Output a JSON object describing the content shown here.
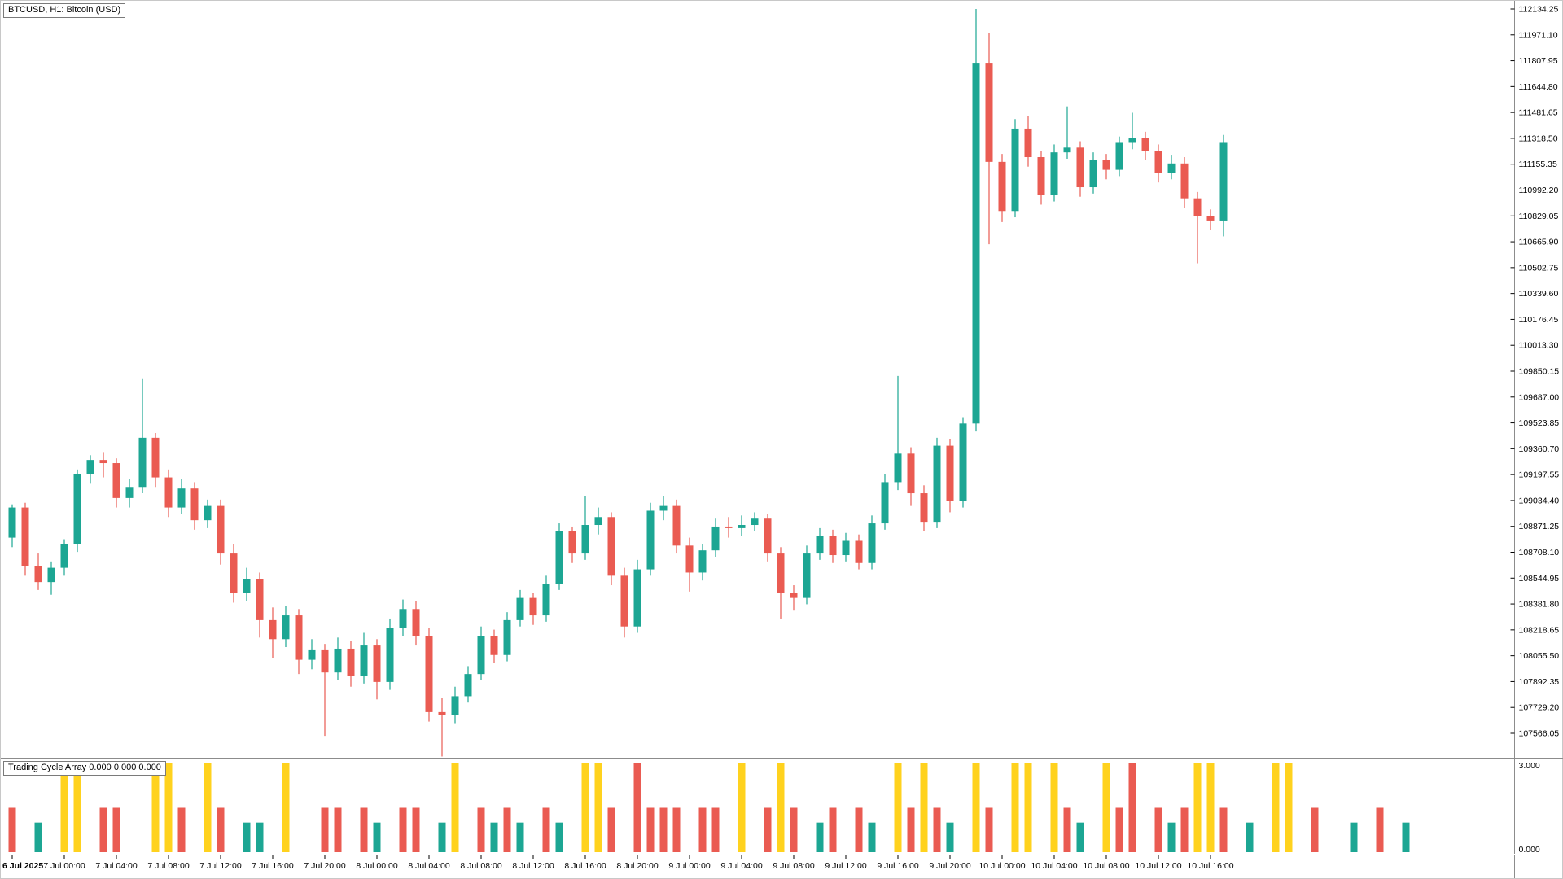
{
  "window": {
    "symbol_title": "BTCUSD, H1:  Bitcoin (USD)"
  },
  "chart_data": {
    "type": "candlestick",
    "symbol": "BTCUSD",
    "timeframe": "H1",
    "title": "BTCUSD, H1:  Bitcoin (USD)",
    "price_axis": {
      "max": 112134.25,
      "min": 107566.05,
      "tick_step": 163.15,
      "labels": [
        "112134.25",
        "111971.10",
        "111807.95",
        "111644.80",
        "111481.65",
        "111318.50",
        "111155.35",
        "110992.20",
        "110829.05",
        "110665.90",
        "110502.75",
        "110339.60",
        "110176.45",
        "110013.30",
        "109850.15",
        "109687.00",
        "109523.85",
        "109360.70",
        "109197.55",
        "109034.40",
        "108871.25",
        "108708.10",
        "108544.95",
        "108381.80",
        "108218.65",
        "108055.50",
        "107892.35",
        "107729.20",
        "107566.05"
      ]
    },
    "time_labels": [
      {
        "i": 0,
        "t": "6 Jul 2025"
      },
      {
        "i": 4,
        "t": "7 Jul 00:00"
      },
      {
        "i": 8,
        "t": "7 Jul 04:00"
      },
      {
        "i": 12,
        "t": "7 Jul 08:00"
      },
      {
        "i": 16,
        "t": "7 Jul 12:00"
      },
      {
        "i": 20,
        "t": "7 Jul 16:00"
      },
      {
        "i": 24,
        "t": "7 Jul 20:00"
      },
      {
        "i": 28,
        "t": "8 Jul 00:00"
      },
      {
        "i": 32,
        "t": "8 Jul 04:00"
      },
      {
        "i": 36,
        "t": "8 Jul 08:00"
      },
      {
        "i": 40,
        "t": "8 Jul 12:00"
      },
      {
        "i": 44,
        "t": "8 Jul 16:00"
      },
      {
        "i": 48,
        "t": "8 Jul 20:00"
      },
      {
        "i": 52,
        "t": "9 Jul 00:00"
      },
      {
        "i": 56,
        "t": "9 Jul 04:00"
      },
      {
        "i": 60,
        "t": "9 Jul 08:00"
      },
      {
        "i": 64,
        "t": "9 Jul 12:00"
      },
      {
        "i": 68,
        "t": "9 Jul 16:00"
      },
      {
        "i": 72,
        "t": "9 Jul 20:00"
      },
      {
        "i": 76,
        "t": "10 Jul 00:00"
      },
      {
        "i": 80,
        "t": "10 Jul 04:00"
      },
      {
        "i": 84,
        "t": "10 Jul 08:00"
      },
      {
        "i": 88,
        "t": "10 Jul 12:00"
      },
      {
        "i": 92,
        "t": "10 Jul 16:00"
      }
    ],
    "candles": [
      [
        108800,
        109010,
        108740,
        108990
      ],
      [
        108990,
        109020,
        108560,
        108620
      ],
      [
        108620,
        108700,
        108470,
        108520
      ],
      [
        108520,
        108650,
        108440,
        108610
      ],
      [
        108610,
        108790,
        108560,
        108760
      ],
      [
        108760,
        109230,
        108710,
        109200
      ],
      [
        109200,
        109320,
        109140,
        109290
      ],
      [
        109290,
        109340,
        109180,
        109270
      ],
      [
        109270,
        109300,
        108990,
        109050
      ],
      [
        109050,
        109170,
        108990,
        109120
      ],
      [
        109120,
        109800,
        109080,
        109430
      ],
      [
        109430,
        109460,
        109120,
        109180
      ],
      [
        109180,
        109230,
        108930,
        108990
      ],
      [
        108990,
        109170,
        108950,
        109110
      ],
      [
        109110,
        109150,
        108850,
        108910
      ],
      [
        108910,
        109040,
        108860,
        109000
      ],
      [
        109000,
        109040,
        108630,
        108700
      ],
      [
        108700,
        108760,
        108390,
        108450
      ],
      [
        108450,
        108610,
        108400,
        108540
      ],
      [
        108540,
        108580,
        108170,
        108280
      ],
      [
        108280,
        108360,
        108040,
        108160
      ],
      [
        108160,
        108370,
        108110,
        108310
      ],
      [
        108310,
        108350,
        107940,
        108030
      ],
      [
        108030,
        108160,
        107970,
        108090
      ],
      [
        108090,
        108130,
        107550,
        107950
      ],
      [
        107950,
        108170,
        107900,
        108100
      ],
      [
        108100,
        108150,
        107860,
        107930
      ],
      [
        107930,
        108200,
        107880,
        108120
      ],
      [
        108120,
        108160,
        107780,
        107890
      ],
      [
        107890,
        108290,
        107840,
        108230
      ],
      [
        108230,
        108410,
        108180,
        108350
      ],
      [
        108350,
        108400,
        108120,
        108180
      ],
      [
        108180,
        108230,
        107640,
        107700
      ],
      [
        107700,
        107790,
        107420,
        107680
      ],
      [
        107680,
        107860,
        107630,
        107800
      ],
      [
        107800,
        107990,
        107760,
        107940
      ],
      [
        107940,
        108240,
        107900,
        108180
      ],
      [
        108180,
        108220,
        108010,
        108060
      ],
      [
        108060,
        108330,
        108020,
        108280
      ],
      [
        108280,
        108470,
        108240,
        108420
      ],
      [
        108420,
        108450,
        108250,
        108310
      ],
      [
        108310,
        108560,
        108270,
        108510
      ],
      [
        108510,
        108890,
        108470,
        108840
      ],
      [
        108840,
        108870,
        108640,
        108700
      ],
      [
        108700,
        109060,
        108660,
        108880
      ],
      [
        108880,
        108990,
        108820,
        108930
      ],
      [
        108930,
        108960,
        108500,
        108560
      ],
      [
        108560,
        108610,
        108170,
        108240
      ],
      [
        108240,
        108660,
        108200,
        108600
      ],
      [
        108600,
        109020,
        108560,
        108970
      ],
      [
        108970,
        109060,
        108910,
        109000
      ],
      [
        109000,
        109040,
        108700,
        108750
      ],
      [
        108750,
        108800,
        108460,
        108580
      ],
      [
        108580,
        108760,
        108530,
        108720
      ],
      [
        108720,
        108920,
        108680,
        108870
      ],
      [
        108870,
        108930,
        108800,
        108860
      ],
      [
        108860,
        108940,
        108810,
        108880
      ],
      [
        108880,
        108960,
        108840,
        108920
      ],
      [
        108920,
        108950,
        108650,
        108700
      ],
      [
        108700,
        108740,
        108290,
        108450
      ],
      [
        108450,
        108500,
        108340,
        108420
      ],
      [
        108420,
        108750,
        108380,
        108700
      ],
      [
        108700,
        108860,
        108660,
        108810
      ],
      [
        108810,
        108850,
        108640,
        108690
      ],
      [
        108690,
        108830,
        108650,
        108780
      ],
      [
        108780,
        108820,
        108600,
        108640
      ],
      [
        108640,
        108940,
        108600,
        108890
      ],
      [
        108890,
        109200,
        108850,
        109150
      ],
      [
        109150,
        109820,
        109100,
        109330
      ],
      [
        109330,
        109370,
        109000,
        109080
      ],
      [
        109080,
        109130,
        108840,
        108900
      ],
      [
        108900,
        109430,
        108860,
        109380
      ],
      [
        109380,
        109420,
        108960,
        109030
      ],
      [
        109030,
        109560,
        108990,
        109520
      ],
      [
        109520,
        112134,
        109470,
        111790
      ],
      [
        111790,
        111980,
        110650,
        111170
      ],
      [
        111170,
        111220,
        110790,
        110860
      ],
      [
        110860,
        111440,
        110820,
        111380
      ],
      [
        111380,
        111460,
        111140,
        111200
      ],
      [
        111200,
        111240,
        110900,
        110960
      ],
      [
        110960,
        111280,
        110920,
        111230
      ],
      [
        111230,
        111520,
        111190,
        111260
      ],
      [
        111260,
        111300,
        110950,
        111010
      ],
      [
        111010,
        111230,
        110970,
        111180
      ],
      [
        111180,
        111220,
        111060,
        111120
      ],
      [
        111120,
        111330,
        111080,
        111290
      ],
      [
        111290,
        111480,
        111250,
        111320
      ],
      [
        111320,
        111360,
        111180,
        111240
      ],
      [
        111240,
        111280,
        111040,
        111100
      ],
      [
        111100,
        111210,
        111060,
        111160
      ],
      [
        111160,
        111200,
        110880,
        110940
      ],
      [
        110940,
        110980,
        110530,
        110830
      ],
      [
        110830,
        110870,
        110740,
        110800
      ],
      [
        110800,
        111340,
        110700,
        111290
      ]
    ],
    "indicator": {
      "name": "Trading Cycle Array",
      "values_label": "Trading Cycle Array 0.000 0.000 0.000",
      "scale": {
        "min": 0,
        "max": 3,
        "top_label": "3.000",
        "bottom_label": "0.000"
      },
      "bars": [
        [
          0,
          "r",
          1.5
        ],
        [
          2,
          "t",
          1
        ],
        [
          4,
          "y",
          3
        ],
        [
          5,
          "y",
          3
        ],
        [
          7,
          "r",
          1.5
        ],
        [
          8,
          "r",
          1.5
        ],
        [
          11,
          "y",
          3
        ],
        [
          12,
          "y",
          3
        ],
        [
          13,
          "r",
          1.5
        ],
        [
          15,
          "y",
          3
        ],
        [
          16,
          "r",
          1.5
        ],
        [
          18,
          "t",
          1
        ],
        [
          19,
          "t",
          1
        ],
        [
          21,
          "y",
          3
        ],
        [
          24,
          "r",
          1.5
        ],
        [
          25,
          "r",
          1.5
        ],
        [
          27,
          "r",
          1.5
        ],
        [
          28,
          "t",
          1
        ],
        [
          30,
          "r",
          1.5
        ],
        [
          31,
          "r",
          1.5
        ],
        [
          33,
          "t",
          1
        ],
        [
          34,
          "y",
          3
        ],
        [
          36,
          "r",
          1.5
        ],
        [
          37,
          "t",
          1
        ],
        [
          38,
          "r",
          1.5
        ],
        [
          39,
          "t",
          1
        ],
        [
          41,
          "r",
          1.5
        ],
        [
          42,
          "t",
          1
        ],
        [
          44,
          "y",
          3
        ],
        [
          45,
          "y",
          3
        ],
        [
          46,
          "r",
          1.5
        ],
        [
          48,
          "r",
          3
        ],
        [
          49,
          "r",
          1.5
        ],
        [
          50,
          "r",
          1.5
        ],
        [
          51,
          "r",
          1.5
        ],
        [
          53,
          "r",
          1.5
        ],
        [
          54,
          "r",
          1.5
        ],
        [
          56,
          "y",
          3
        ],
        [
          58,
          "r",
          1.5
        ],
        [
          59,
          "y",
          3
        ],
        [
          60,
          "r",
          1.5
        ],
        [
          62,
          "t",
          1
        ],
        [
          63,
          "r",
          1.5
        ],
        [
          65,
          "r",
          1.5
        ],
        [
          66,
          "t",
          1
        ],
        [
          68,
          "y",
          3
        ],
        [
          69,
          "r",
          1.5
        ],
        [
          70,
          "y",
          3
        ],
        [
          71,
          "r",
          1.5
        ],
        [
          72,
          "t",
          1
        ],
        [
          74,
          "y",
          3
        ],
        [
          75,
          "r",
          1.5
        ],
        [
          77,
          "y",
          3
        ],
        [
          78,
          "y",
          3
        ],
        [
          80,
          "y",
          3
        ],
        [
          81,
          "r",
          1.5
        ],
        [
          82,
          "t",
          1
        ],
        [
          84,
          "y",
          3
        ],
        [
          85,
          "r",
          1.5
        ],
        [
          86,
          "r",
          3
        ],
        [
          88,
          "r",
          1.5
        ],
        [
          89,
          "t",
          1
        ],
        [
          90,
          "r",
          1.5
        ],
        [
          91,
          "y",
          3
        ],
        [
          92,
          "y",
          3
        ],
        [
          93,
          "r",
          1.5
        ],
        [
          95,
          "t",
          1
        ],
        [
          97,
          "y",
          3
        ],
        [
          98,
          "y",
          3
        ],
        [
          100,
          "r",
          1.5
        ],
        [
          103,
          "t",
          1
        ],
        [
          105,
          "r",
          1.5
        ],
        [
          107,
          "t",
          1
        ]
      ]
    },
    "layout": {
      "grid": false,
      "background": "#ffffff",
      "axis_position": "right",
      "right_margin_candles": 22
    },
    "colors": {
      "up": "#1CA693",
      "down": "#EA5B52",
      "indicator_yellow": "#FFD21E",
      "indicator_red": "#EA5B52",
      "indicator_teal": "#1CA693",
      "axis_text": "#000000",
      "separator": "#8c8c8c"
    }
  }
}
